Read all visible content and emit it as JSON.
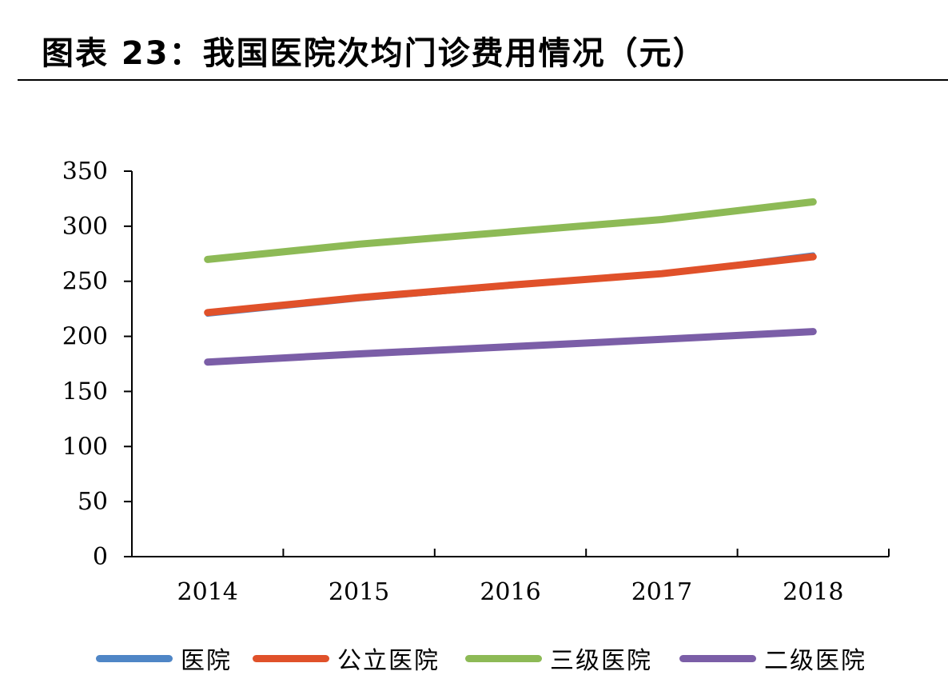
{
  "figure": {
    "title": "图表 23：我国医院次均门诊费用情况（元）"
  },
  "chart_data": {
    "type": "line",
    "title": "图表 23：我国医院次均门诊费用情况（元）",
    "xlabel": "",
    "ylabel": "",
    "categories": [
      "2014",
      "2015",
      "2016",
      "2017",
      "2018"
    ],
    "ylim": [
      0,
      350
    ],
    "yticks": [
      0,
      50,
      100,
      150,
      200,
      250,
      300,
      350
    ],
    "grid": false,
    "legend_position": "bottom",
    "series": [
      {
        "name": "医院",
        "color": "#4f86c6",
        "values": [
          220.0,
          233.9,
          245.5,
          257.0,
          274.1
        ]
      },
      {
        "name": "公立医院",
        "color": "#e0512a",
        "values": [
          221.6,
          235.2,
          246.5,
          256.9,
          272.2
        ]
      },
      {
        "name": "三级医院",
        "color": "#8dba56",
        "values": [
          269.8,
          283.7,
          294.9,
          306.1,
          322.1
        ]
      },
      {
        "name": "二级医院",
        "color": "#7b5ea7",
        "values": [
          176.7,
          184.1,
          190.6,
          197.3,
          204.3
        ]
      }
    ]
  }
}
